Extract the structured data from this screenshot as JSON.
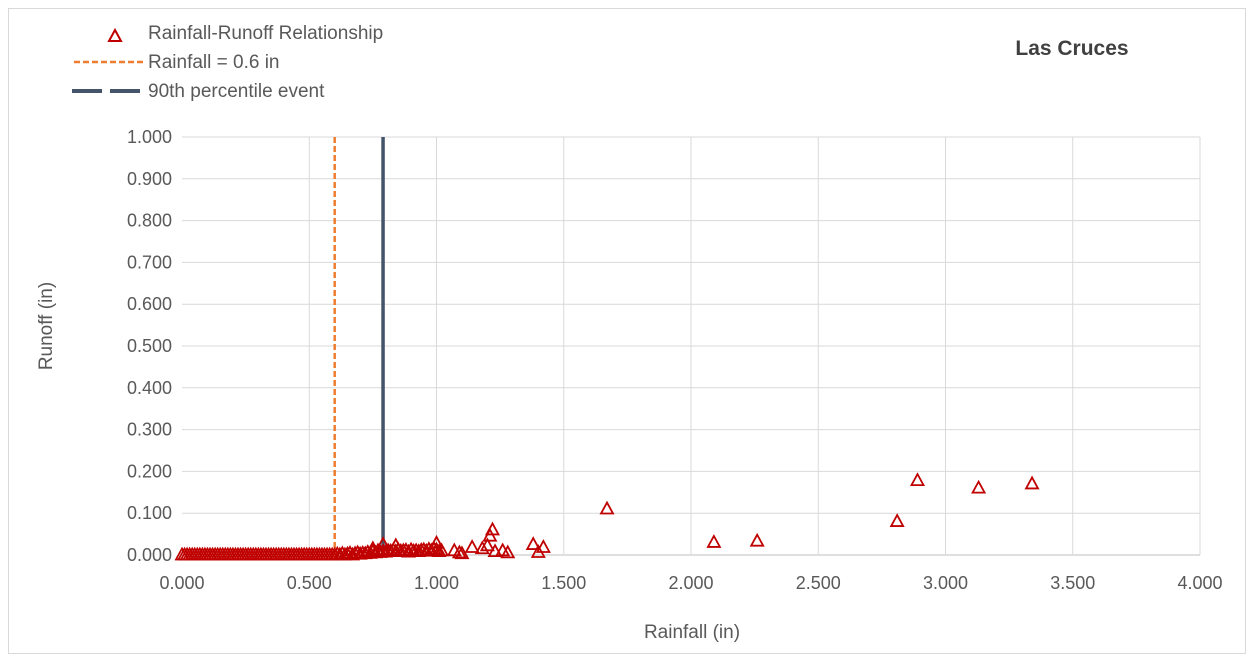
{
  "chart_data": {
    "type": "scatter",
    "title": "Las Cruces",
    "xlabel": "Rainfall (in)",
    "ylabel": "Runoff (in)",
    "xlim": [
      0,
      4
    ],
    "ylim": [
      0,
      1
    ],
    "x_ticks": [
      "0.000",
      "0.500",
      "1.000",
      "1.500",
      "2.000",
      "2.500",
      "3.000",
      "3.500",
      "4.000"
    ],
    "y_ticks": [
      "0.000",
      "0.100",
      "0.200",
      "0.300",
      "0.400",
      "0.500",
      "0.600",
      "0.700",
      "0.800",
      "0.900",
      "1.000"
    ],
    "grid": true,
    "legend_position": "top-left",
    "series": [
      {
        "name": "Rainfall-Runoff Relationship",
        "marker": "triangle-open",
        "color": "#c00000",
        "x": [
          0.0,
          0.01,
          0.02,
          0.03,
          0.04,
          0.05,
          0.06,
          0.07,
          0.08,
          0.09,
          0.1,
          0.11,
          0.12,
          0.13,
          0.14,
          0.15,
          0.16,
          0.17,
          0.18,
          0.19,
          0.2,
          0.21,
          0.22,
          0.23,
          0.24,
          0.25,
          0.26,
          0.27,
          0.28,
          0.29,
          0.3,
          0.31,
          0.32,
          0.33,
          0.34,
          0.35,
          0.36,
          0.37,
          0.38,
          0.39,
          0.4,
          0.41,
          0.42,
          0.43,
          0.44,
          0.45,
          0.46,
          0.47,
          0.48,
          0.49,
          0.5,
          0.51,
          0.52,
          0.53,
          0.54,
          0.55,
          0.56,
          0.57,
          0.58,
          0.59,
          0.6,
          0.61,
          0.62,
          0.63,
          0.64,
          0.65,
          0.66,
          0.67,
          0.68,
          0.69,
          0.7,
          0.71,
          0.72,
          0.73,
          0.74,
          0.75,
          0.76,
          0.77,
          0.78,
          0.79,
          0.8,
          0.81,
          0.82,
          0.83,
          0.84,
          0.85,
          0.86,
          0.87,
          0.88,
          0.89,
          0.9,
          0.91,
          0.92,
          0.93,
          0.94,
          0.95,
          0.96,
          0.97,
          0.98,
          0.99,
          1.0,
          1.01,
          1.02,
          0.75,
          0.79,
          0.84,
          1.0,
          1.07,
          1.09,
          1.1,
          1.14,
          1.18,
          1.2,
          1.22,
          1.21,
          1.23,
          1.26,
          1.28,
          1.38,
          1.4,
          1.42,
          1.67,
          2.09,
          2.26,
          2.81,
          2.89,
          3.13,
          3.34
        ],
        "y": [
          0.0,
          0.0,
          0.0,
          0.0,
          0.0,
          0.0,
          0.0,
          0.0,
          0.0,
          0.0,
          0.0,
          0.0,
          0.0,
          0.0,
          0.0,
          0.0,
          0.0,
          0.0,
          0.0,
          0.0,
          0.0,
          0.0,
          0.0,
          0.0,
          0.0,
          0.0,
          0.0,
          0.0,
          0.0,
          0.0,
          0.0,
          0.0,
          0.0,
          0.0,
          0.0,
          0.0,
          0.0,
          0.0,
          0.0,
          0.0,
          0.0,
          0.0,
          0.0,
          0.0,
          0.0,
          0.0,
          0.0,
          0.0,
          0.0,
          0.0,
          0.0,
          0.0,
          0.0,
          0.0,
          0.0,
          0.0,
          0.0,
          0.0,
          0.0,
          0.0,
          0.0,
          0.002,
          0.0,
          0.003,
          0.0,
          0.002,
          0.004,
          0.0,
          0.003,
          0.005,
          0.002,
          0.004,
          0.003,
          0.006,
          0.004,
          0.008,
          0.005,
          0.01,
          0.006,
          0.008,
          0.007,
          0.01,
          0.009,
          0.011,
          0.008,
          0.012,
          0.009,
          0.01,
          0.011,
          0.007,
          0.012,
          0.009,
          0.01,
          0.008,
          0.011,
          0.012,
          0.009,
          0.013,
          0.01,
          0.014,
          0.012,
          0.008,
          0.01,
          0.015,
          0.025,
          0.022,
          0.028,
          0.01,
          0.005,
          0.003,
          0.018,
          0.015,
          0.022,
          0.06,
          0.045,
          0.008,
          0.01,
          0.005,
          0.025,
          0.006,
          0.018,
          0.11,
          0.03,
          0.033,
          0.08,
          0.178,
          0.16,
          0.17
        ]
      },
      {
        "name": "Rainfall = 0.6 in",
        "type": "vertical-line",
        "x": 0.6,
        "style": "dashed",
        "color": "#ed7d31"
      },
      {
        "name": "90th percentile event",
        "type": "vertical-line",
        "x": 0.79,
        "style": "solid",
        "color": "#44546a"
      }
    ]
  }
}
